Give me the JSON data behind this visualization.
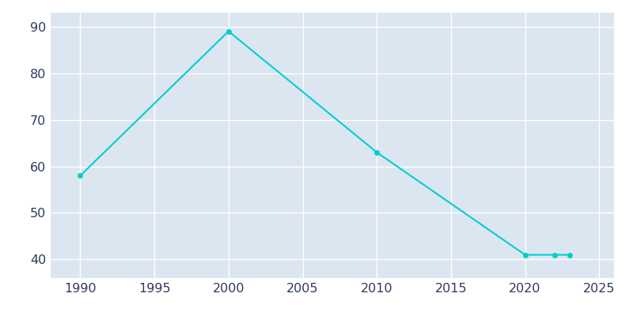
{
  "years": [
    1990,
    2000,
    2010,
    2020,
    2022,
    2023
  ],
  "population": [
    58,
    89,
    63,
    41,
    41,
    41
  ],
  "line_color": "#00CED1",
  "plot_bg_color": "#dce6f0",
  "fig_bg_color": "#ffffff",
  "grid_color": "#ffffff",
  "xlim": [
    1988,
    2026
  ],
  "ylim": [
    36,
    93
  ],
  "xticks": [
    1990,
    1995,
    2000,
    2005,
    2010,
    2015,
    2020,
    2025
  ],
  "yticks": [
    40,
    50,
    60,
    70,
    80,
    90
  ],
  "linewidth": 1.5,
  "marker": "o",
  "markersize": 4,
  "tick_labelsize": 11.5,
  "tick_labelcolor": "#2d3a5e"
}
